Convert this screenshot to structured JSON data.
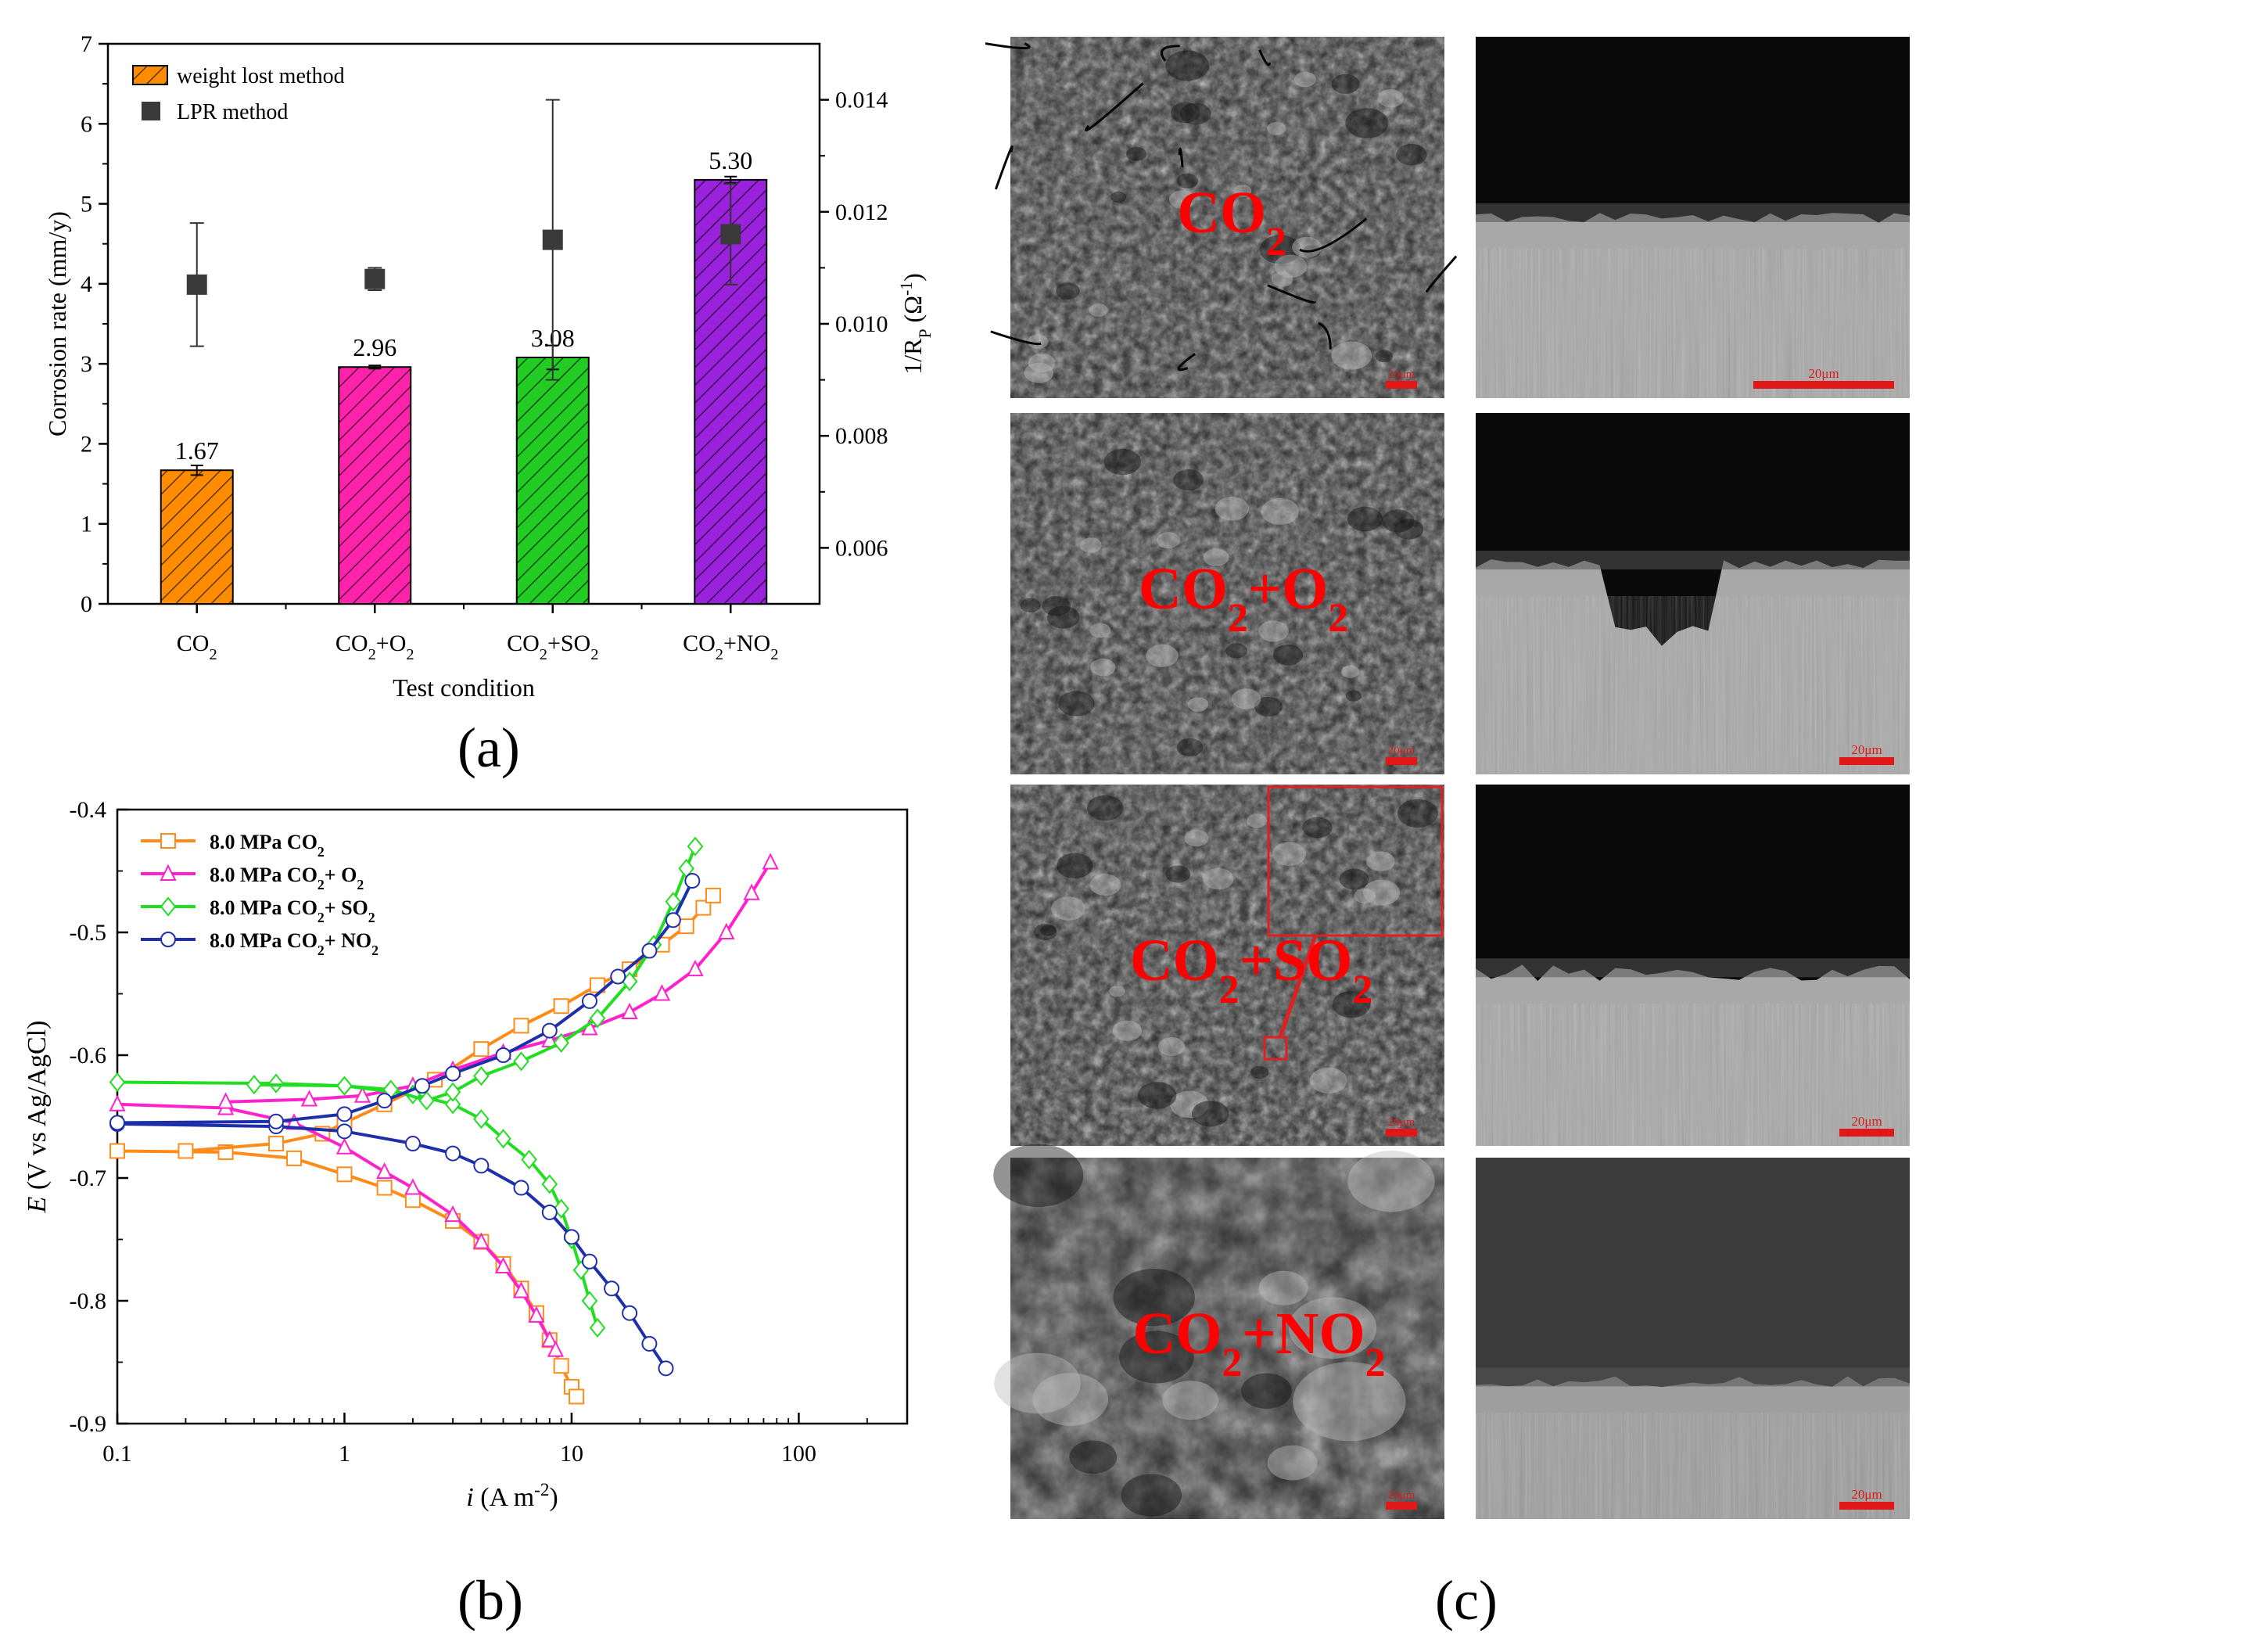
{
  "panel_a": {
    "panel_label": "(a)",
    "chart_data": {
      "type": "bar",
      "categories": [
        "CO2",
        "CO2+O2",
        "CO2+SO2",
        "CO2+NO2"
      ],
      "category_labels": [
        {
          "main": "CO",
          "sub": "2",
          "tail": "",
          "sub2": ""
        },
        {
          "main": "CO",
          "sub": "2",
          "tail": "+O",
          "sub2": "2"
        },
        {
          "main": "CO",
          "sub": "2",
          "tail": "+SO",
          "sub2": "2"
        },
        {
          "main": "CO",
          "sub": "2",
          "tail": "+NO",
          "sub2": "2"
        }
      ],
      "bar_values": [
        1.67,
        2.96,
        3.08,
        5.3
      ],
      "bar_value_labels": [
        "1.67",
        "2.96",
        "3.08",
        "5.30"
      ],
      "bar_errors": [
        0.06,
        0.02,
        0.15,
        0.04
      ],
      "bar_colors": [
        "#FF8C00",
        "#FF22AA",
        "#22CC22",
        "#9A22DD"
      ],
      "lpr_values": [
        0.0107,
        0.0108,
        0.0115,
        0.0116
      ],
      "lpr_errors": [
        0.0011,
        0.0002,
        0.0025,
        0.0009
      ],
      "legend": [
        "weight lost method",
        "LPR method"
      ],
      "xlabel": "Test condition",
      "ylabel": "Corrosion rate (mm/y)",
      "y2label": {
        "main": "1/R",
        "sub": "P",
        "mid": " (Ω",
        "sup": "-1",
        "end": ")"
      },
      "ylim": [
        0,
        7
      ],
      "yticks": [
        "0",
        "1",
        "2",
        "3",
        "4",
        "5",
        "6",
        "7"
      ],
      "y2lim": [
        0.005,
        0.015
      ],
      "y2ticks": [
        "0.006",
        "0.008",
        "0.010",
        "0.012",
        "0.014"
      ],
      "legend_position": "top-left"
    }
  },
  "panel_b": {
    "panel_label": "(b)",
    "chart_data": {
      "type": "line",
      "xscale": "log",
      "xlim": [
        0.1,
        300
      ],
      "ylim": [
        -0.9,
        -0.4
      ],
      "xticks": [
        "0.1",
        "1",
        "10",
        "100"
      ],
      "yticks": [
        "-0.4",
        "-0.5",
        "-0.6",
        "-0.7",
        "-0.8",
        "-0.9"
      ],
      "xlabel": {
        "italic": "i",
        "rest": " (A m",
        "sup": "-2",
        "end": ")"
      },
      "ylabel": {
        "italic": "E",
        "rest": " (V vs Ag/AgCl)"
      },
      "legend_position": "top-left",
      "series": [
        {
          "name": "8.0 MPa CO2",
          "label": {
            "main": "8.0 MPa CO",
            "sub": "2"
          },
          "color": "#FF8C1A",
          "marker": "square",
          "cathodic": [
            [
              0.1,
              -0.678
            ],
            [
              0.3,
              -0.679
            ],
            [
              0.6,
              -0.684
            ],
            [
              1.0,
              -0.697
            ],
            [
              1.5,
              -0.708
            ],
            [
              2.0,
              -0.718
            ],
            [
              3.0,
              -0.735
            ],
            [
              4.0,
              -0.752
            ],
            [
              5.0,
              -0.77
            ],
            [
              6.0,
              -0.79
            ],
            [
              7.0,
              -0.81
            ],
            [
              8.0,
              -0.832
            ],
            [
              9.0,
              -0.853
            ],
            [
              10.0,
              -0.87
            ],
            [
              10.5,
              -0.878
            ]
          ],
          "anodic": [
            [
              0.2,
              -0.678
            ],
            [
              0.5,
              -0.672
            ],
            [
              0.8,
              -0.664
            ],
            [
              1.0,
              -0.655
            ],
            [
              1.5,
              -0.64
            ],
            [
              2.5,
              -0.62
            ],
            [
              4.0,
              -0.595
            ],
            [
              6.0,
              -0.576
            ],
            [
              9.0,
              -0.56
            ],
            [
              13.0,
              -0.543
            ],
            [
              18.0,
              -0.53
            ],
            [
              25.0,
              -0.51
            ],
            [
              32.0,
              -0.495
            ],
            [
              38.0,
              -0.48
            ],
            [
              42.0,
              -0.47
            ]
          ]
        },
        {
          "name": "8.0 MPa CO2+ O2",
          "label": {
            "main": "8.0 MPa CO",
            "sub": "2",
            "tail": "+ O",
            "sub2": "2"
          },
          "color": "#FF22CC",
          "marker": "triangle",
          "cathodic": [
            [
              0.1,
              -0.64
            ],
            [
              0.3,
              -0.643
            ],
            [
              0.6,
              -0.655
            ],
            [
              1.0,
              -0.675
            ],
            [
              1.5,
              -0.695
            ],
            [
              2.0,
              -0.708
            ],
            [
              3.0,
              -0.73
            ],
            [
              4.0,
              -0.752
            ],
            [
              5.0,
              -0.772
            ],
            [
              6.0,
              -0.792
            ],
            [
              7.0,
              -0.812
            ],
            [
              8.0,
              -0.832
            ],
            [
              8.5,
              -0.84
            ]
          ],
          "anodic": [
            [
              0.3,
              -0.638
            ],
            [
              0.7,
              -0.636
            ],
            [
              1.2,
              -0.633
            ],
            [
              2.0,
              -0.625
            ],
            [
              3.0,
              -0.612
            ],
            [
              5.0,
              -0.598
            ],
            [
              8.0,
              -0.588
            ],
            [
              12.0,
              -0.578
            ],
            [
              18.0,
              -0.565
            ],
            [
              25.0,
              -0.55
            ],
            [
              35.0,
              -0.53
            ],
            [
              48.0,
              -0.5
            ],
            [
              62.0,
              -0.468
            ],
            [
              75.0,
              -0.443
            ]
          ]
        },
        {
          "name": "8.0 MPa CO2+ SO2",
          "label": {
            "main": "8.0 MPa CO",
            "sub": "2",
            "tail": "+ SO",
            "sub2": "2"
          },
          "color": "#22DD22",
          "marker": "diamond",
          "cathodic": [
            [
              0.1,
              -0.622
            ],
            [
              0.5,
              -0.623
            ],
            [
              1.0,
              -0.625
            ],
            [
              2.0,
              -0.632
            ],
            [
              3.0,
              -0.64
            ],
            [
              4.0,
              -0.652
            ],
            [
              5.0,
              -0.668
            ],
            [
              6.5,
              -0.685
            ],
            [
              8.0,
              -0.705
            ],
            [
              9.0,
              -0.725
            ],
            [
              10.0,
              -0.75
            ],
            [
              11.0,
              -0.775
            ],
            [
              12.0,
              -0.8
            ],
            [
              13.0,
              -0.822
            ]
          ],
          "anodic": [
            [
              0.4,
              -0.624
            ],
            [
              1.0,
              -0.625
            ],
            [
              1.6,
              -0.628
            ],
            [
              2.3,
              -0.637
            ],
            [
              3.0,
              -0.63
            ],
            [
              4.0,
              -0.617
            ],
            [
              6.0,
              -0.605
            ],
            [
              9.0,
              -0.59
            ],
            [
              13.0,
              -0.57
            ],
            [
              18.0,
              -0.54
            ],
            [
              23.0,
              -0.51
            ],
            [
              28.0,
              -0.475
            ],
            [
              32.0,
              -0.448
            ],
            [
              35.0,
              -0.43
            ]
          ]
        },
        {
          "name": "8.0 MPa CO2+ NO2",
          "label": {
            "main": "8.0 MPa CO",
            "sub": "2",
            "tail": "+ NO",
            "sub2": "2"
          },
          "color": "#1E2FAA",
          "marker": "circle",
          "cathodic": [
            [
              0.1,
              -0.656
            ],
            [
              0.5,
              -0.658
            ],
            [
              1.0,
              -0.662
            ],
            [
              2.0,
              -0.672
            ],
            [
              3.0,
              -0.68
            ],
            [
              4.0,
              -0.69
            ],
            [
              6.0,
              -0.708
            ],
            [
              8.0,
              -0.728
            ],
            [
              10.0,
              -0.748
            ],
            [
              12.0,
              -0.768
            ],
            [
              15.0,
              -0.79
            ],
            [
              18.0,
              -0.81
            ],
            [
              22.0,
              -0.835
            ],
            [
              26.0,
              -0.855
            ]
          ],
          "anodic": [
            [
              0.1,
              -0.655
            ],
            [
              0.5,
              -0.654
            ],
            [
              1.0,
              -0.648
            ],
            [
              1.5,
              -0.637
            ],
            [
              2.2,
              -0.625
            ],
            [
              3.0,
              -0.615
            ],
            [
              5.0,
              -0.6
            ],
            [
              8.0,
              -0.58
            ],
            [
              12.0,
              -0.556
            ],
            [
              16.0,
              -0.536
            ],
            [
              22.0,
              -0.515
            ],
            [
              28.0,
              -0.49
            ],
            [
              34.0,
              -0.458
            ]
          ]
        }
      ]
    }
  },
  "panel_c": {
    "panel_label": "(c)",
    "scale_text": "20μm",
    "rows": [
      {
        "label": {
          "main": "CO",
          "sub": "2",
          "tail": "",
          "sub2": ""
        }
      },
      {
        "label": {
          "main": "CO",
          "sub": "2",
          "tail": "+O",
          "sub2": "2"
        }
      },
      {
        "label": {
          "main": "CO",
          "sub": "2",
          "tail": "+SO",
          "sub2": "2"
        }
      },
      {
        "label": {
          "main": "CO",
          "sub": "2",
          "tail": "+NO",
          "sub2": "2"
        }
      }
    ],
    "label_color": "#FF0000"
  }
}
